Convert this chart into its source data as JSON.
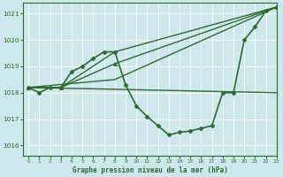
{
  "background_color": "#cce8ec",
  "grid_color": "#ffffff",
  "line_color": "#2d6a2d",
  "title": "Graphe pression niveau de la mer (hPa)",
  "xlim": [
    -0.5,
    23
  ],
  "ylim": [
    1015.6,
    1021.4
  ],
  "yticks": [
    1016,
    1017,
    1018,
    1019,
    1020,
    1021
  ],
  "xticks": [
    0,
    1,
    2,
    3,
    4,
    5,
    6,
    7,
    8,
    9,
    10,
    11,
    12,
    13,
    14,
    15,
    16,
    17,
    18,
    19,
    20,
    21,
    22,
    23
  ],
  "series": [
    {
      "x": [
        0,
        1,
        2,
        3,
        4,
        5,
        6,
        7,
        8,
        9,
        10,
        11,
        12,
        13,
        14,
        15,
        16,
        17,
        18,
        19,
        20,
        21,
        22,
        23
      ],
      "y": [
        1018.2,
        1018.0,
        1018.2,
        1018.2,
        1018.8,
        1019.0,
        1019.3,
        1019.55,
        1019.55,
        1018.3,
        1017.5,
        1017.1,
        1016.75,
        1016.4,
        1016.5,
        1016.55,
        1016.65,
        1016.75,
        1018.0,
        1018.0,
        1020.0,
        1020.5,
        1021.1,
        1021.25
      ],
      "marker": "D",
      "markersize": 2.5,
      "linewidth": 1.2
    },
    {
      "x": [
        0,
        23
      ],
      "y": [
        1018.2,
        1018.0
      ],
      "marker": null,
      "markersize": 0,
      "linewidth": 1.0
    },
    {
      "x": [
        0,
        8,
        23
      ],
      "y": [
        1018.2,
        1018.5,
        1021.25
      ],
      "marker": null,
      "markersize": 0,
      "linewidth": 1.0
    },
    {
      "x": [
        0,
        3,
        8,
        23
      ],
      "y": [
        1018.2,
        1018.2,
        1019.1,
        1021.25
      ],
      "marker": "^",
      "markersize": 3.0,
      "linewidth": 1.0
    },
    {
      "x": [
        0,
        3,
        8,
        23
      ],
      "y": [
        1018.2,
        1018.2,
        1019.55,
        1021.25
      ],
      "marker": null,
      "markersize": 0,
      "linewidth": 1.0
    }
  ]
}
